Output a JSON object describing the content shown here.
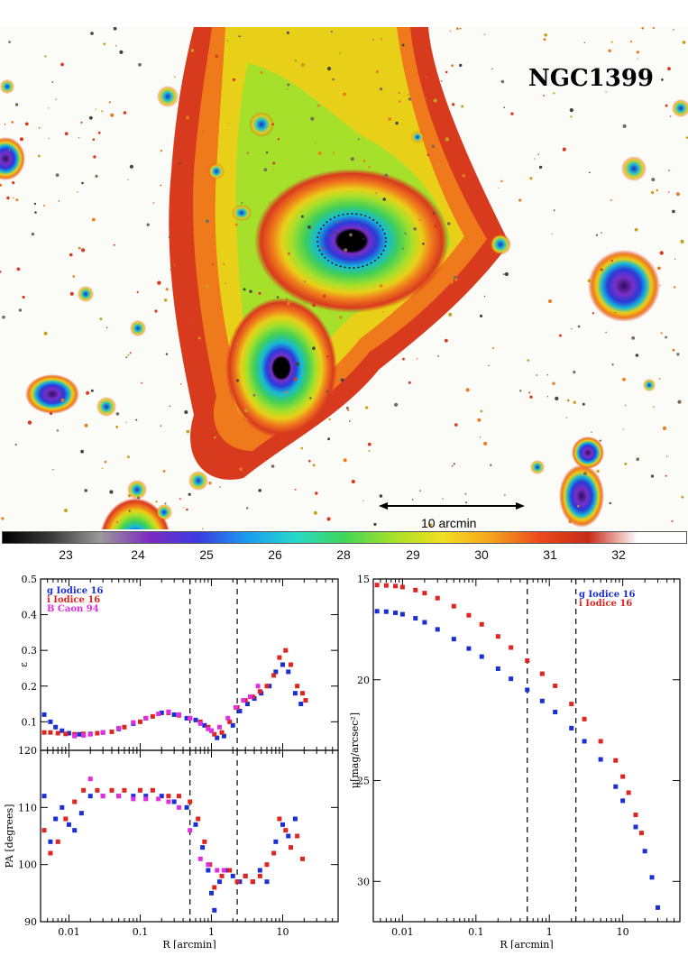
{
  "image": {
    "object_label": "NGC1399",
    "scale_bar_label": "10 arcmin",
    "colors": {
      "background": "#fbfbf8",
      "halo_red": "#d83a1e",
      "halo_orange": "#ef7a1c",
      "halo_yellow": "#e9d018",
      "halo_green": "#3fcf58",
      "halo_cyan": "#16b9d8",
      "halo_blue": "#2b39d9",
      "halo_purple": "#7a2fc6",
      "core": "#000000"
    }
  },
  "colorbar": {
    "ticks": [
      "23",
      "24",
      "25",
      "26",
      "28",
      "29",
      "30",
      "31",
      "32"
    ],
    "gradient": [
      "#000000",
      "#3a3a3a",
      "#9a9a9a",
      "#7d2bc0",
      "#3b3be0",
      "#1a9bf0",
      "#27d8c8",
      "#3fd758",
      "#a6e02a",
      "#f0e020",
      "#f5a41d",
      "#ea4a1a",
      "#c62b18",
      "#ffffff",
      "#ffffff"
    ]
  },
  "chart_data": [
    {
      "type": "scatter",
      "panel": "ellipticity",
      "xscale": "log",
      "xlim": [
        0.004,
        60
      ],
      "ylim": [
        0.02,
        0.5
      ],
      "ylabel": "ε",
      "yticks": [
        "0.1",
        "0.2",
        "0.3",
        "0.4",
        "0.5"
      ],
      "vlines": [
        0.5,
        2.3
      ],
      "legend": [
        {
          "label": "g Iodice 16",
          "color": "#1b2fd6"
        },
        {
          "label": "i Iodice 16",
          "color": "#e0241f"
        },
        {
          "label": "B Caon 94",
          "color": "#e02ee0"
        }
      ],
      "series": [
        {
          "name": "g Iodice 16",
          "color": "#1b2fd6",
          "x": [
            0.0045,
            0.0055,
            0.0065,
            0.008,
            0.01,
            0.014,
            0.02,
            0.03,
            0.05,
            0.08,
            0.12,
            0.2,
            0.3,
            0.45,
            0.6,
            0.8,
            1.0,
            1.2,
            1.5,
            2.0,
            2.5,
            3.2,
            4.0,
            5.0,
            6.5,
            8.0,
            10.0,
            12.0,
            15.0,
            18.0
          ],
          "y": [
            0.12,
            0.1,
            0.085,
            0.075,
            0.068,
            0.065,
            0.066,
            0.07,
            0.08,
            0.095,
            0.11,
            0.125,
            0.12,
            0.11,
            0.105,
            0.09,
            0.075,
            0.055,
            0.06,
            0.09,
            0.13,
            0.15,
            0.165,
            0.18,
            0.2,
            0.24,
            0.26,
            0.24,
            0.18,
            0.15
          ]
        },
        {
          "name": "i Iodice 16",
          "color": "#e0241f",
          "x": [
            0.0045,
            0.0055,
            0.007,
            0.009,
            0.012,
            0.016,
            0.025,
            0.04,
            0.06,
            0.1,
            0.15,
            0.25,
            0.35,
            0.5,
            0.7,
            0.9,
            1.1,
            1.4,
            1.8,
            2.3,
            3.0,
            3.8,
            4.8,
            6.0,
            7.5,
            9.0,
            11.0,
            13.0,
            16.0,
            19.0,
            21.0
          ],
          "y": [
            0.07,
            0.07,
            0.068,
            0.066,
            0.065,
            0.066,
            0.068,
            0.072,
            0.085,
            0.1,
            0.115,
            0.125,
            0.118,
            0.11,
            0.1,
            0.085,
            0.065,
            0.07,
            0.1,
            0.14,
            0.16,
            0.17,
            0.185,
            0.2,
            0.23,
            0.28,
            0.3,
            0.26,
            0.2,
            0.18,
            0.16
          ]
        },
        {
          "name": "B Caon 94",
          "color": "#e02ee0",
          "x": [
            0.012,
            0.016,
            0.02,
            0.03,
            0.05,
            0.08,
            0.12,
            0.18,
            0.25,
            0.35,
            0.5,
            0.7,
            0.9,
            1.0,
            1.3,
            1.7,
            2.2,
            2.8,
            3.5,
            4.5
          ],
          "y": [
            0.06,
            0.062,
            0.065,
            0.07,
            0.082,
            0.098,
            0.11,
            0.122,
            0.128,
            0.12,
            0.11,
            0.095,
            0.08,
            0.075,
            0.085,
            0.11,
            0.14,
            0.16,
            0.17,
            0.2
          ]
        }
      ]
    },
    {
      "type": "scatter",
      "panel": "position_angle",
      "xscale": "log",
      "xlim": [
        0.004,
        60
      ],
      "ylim": [
        90,
        120
      ],
      "ylabel": "PA [degrees]",
      "xlabel": "R [arcmin]",
      "yticks": [
        "90",
        "100",
        "110",
        "120"
      ],
      "xticks": [
        "0.01",
        "0.1",
        "1",
        "10"
      ],
      "vlines": [
        0.5,
        2.3
      ],
      "series": [
        {
          "name": "g Iodice 16",
          "color": "#1b2fd6",
          "x": [
            0.0045,
            0.0055,
            0.0065,
            0.008,
            0.01,
            0.012,
            0.015,
            0.02,
            0.03,
            0.05,
            0.08,
            0.12,
            0.2,
            0.3,
            0.45,
            0.6,
            0.75,
            0.9,
            1.0,
            1.1,
            1.3,
            1.6,
            2.0,
            2.5,
            3.0,
            3.8,
            4.8,
            6.0,
            8.0,
            10.0,
            12.0,
            15.0
          ],
          "y": [
            112,
            104,
            108,
            110,
            107,
            106,
            109,
            112,
            112,
            112,
            112,
            112,
            112,
            111,
            110,
            107,
            103,
            99,
            95,
            92,
            97,
            99,
            98,
            97,
            98,
            97,
            99,
            97,
            104,
            107,
            105,
            108
          ]
        },
        {
          "name": "i Iodice 16",
          "color": "#e0241f",
          "x": [
            0.0045,
            0.0055,
            0.007,
            0.009,
            0.012,
            0.016,
            0.025,
            0.04,
            0.06,
            0.1,
            0.15,
            0.25,
            0.35,
            0.5,
            0.65,
            0.8,
            0.95,
            1.1,
            1.4,
            1.8,
            2.3,
            3.0,
            3.8,
            4.8,
            6.0,
            7.5,
            9.0,
            11.0,
            13.0,
            16.0,
            19.0
          ],
          "y": [
            106,
            102,
            104,
            108,
            111,
            113,
            113,
            113,
            113,
            113,
            113,
            112,
            112,
            111,
            108,
            104,
            100,
            96,
            98,
            99,
            97,
            98,
            97,
            98,
            100,
            102,
            108,
            106,
            103,
            105,
            101
          ]
        },
        {
          "name": "B Caon 94",
          "color": "#e02ee0",
          "x": [
            0.02,
            0.03,
            0.05,
            0.08,
            0.12,
            0.18,
            0.25,
            0.35,
            0.5,
            0.7,
            0.9,
            1.2,
            1.5
          ],
          "y": [
            115,
            112,
            112,
            111.5,
            111.5,
            111.5,
            111,
            110,
            106,
            101,
            100,
            99,
            99
          ]
        }
      ]
    },
    {
      "type": "scatter",
      "panel": "surface_brightness",
      "xscale": "log",
      "xlim": [
        0.004,
        60
      ],
      "ylim": [
        32,
        15
      ],
      "ylabel": "μ[mag/arcsec²]",
      "xlabel": "R [arcmin]",
      "yticks": [
        "15",
        "20",
        "25",
        "30"
      ],
      "xticks": [
        "0.01",
        "0.1",
        "1",
        "10"
      ],
      "vlines": [
        0.5,
        2.3
      ],
      "legend": [
        {
          "label": "g Iodice 16",
          "color": "#1b2fd6"
        },
        {
          "label": "i Iodice 16",
          "color": "#e0241f"
        }
      ],
      "series": [
        {
          "name": "g Iodice 16",
          "color": "#1b2fd6",
          "x": [
            0.0045,
            0.006,
            0.008,
            0.01,
            0.015,
            0.02,
            0.03,
            0.05,
            0.08,
            0.12,
            0.2,
            0.3,
            0.5,
            0.8,
            1.2,
            2.0,
            3.0,
            5.0,
            8.0,
            10.0,
            15.0,
            20.0,
            25.0,
            30.0
          ],
          "y": [
            16.6,
            16.62,
            16.68,
            16.75,
            16.95,
            17.15,
            17.5,
            17.98,
            18.45,
            18.85,
            19.45,
            19.95,
            20.5,
            21.05,
            21.6,
            22.4,
            23.05,
            23.95,
            25.3,
            26.0,
            27.3,
            28.5,
            29.8,
            31.3
          ]
        },
        {
          "name": "i Iodice 16",
          "color": "#e0241f",
          "x": [
            0.0045,
            0.006,
            0.008,
            0.01,
            0.015,
            0.02,
            0.03,
            0.05,
            0.08,
            0.12,
            0.2,
            0.3,
            0.5,
            0.8,
            1.2,
            2.0,
            3.0,
            5.0,
            8.0,
            10.0,
            12.0,
            15.0,
            18.0
          ],
          "y": [
            15.3,
            15.32,
            15.35,
            15.4,
            15.55,
            15.7,
            15.95,
            16.35,
            16.8,
            17.25,
            17.85,
            18.4,
            19.05,
            19.7,
            20.3,
            21.2,
            21.95,
            23.05,
            24.0,
            24.8,
            25.6,
            26.7,
            27.6
          ]
        }
      ]
    }
  ]
}
